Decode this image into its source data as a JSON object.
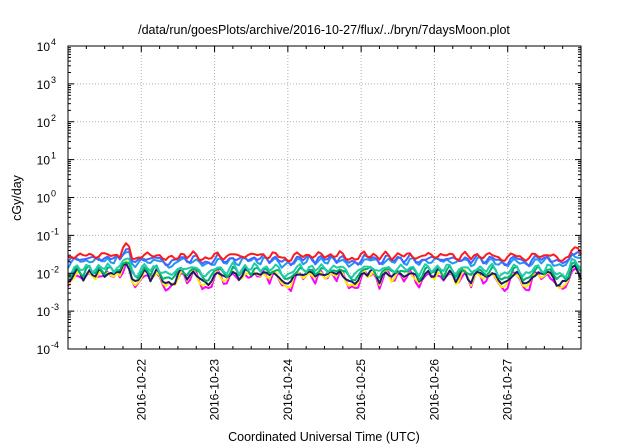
{
  "chart_data": {
    "type": "line",
    "title": "/data/run/goesPlots/archive/2016-10-27/flux/../bryn/7daysMoon.plot",
    "xlabel": "Coordinated Universal Time (UTC)",
    "ylabel": "cGy/day",
    "y_scale": "log",
    "ylim": [
      0.0001,
      10000
    ],
    "xlim": [
      "2016-10-21T00:00",
      "2016-10-28T00:00"
    ],
    "grid": true,
    "x_ticks": [
      "2016-10-22",
      "2016-10-23",
      "2016-10-24",
      "2016-10-25",
      "2016-10-26",
      "2016-10-27"
    ],
    "y_ticks": [
      {
        "value": 0.0001,
        "base": "10",
        "exp": "-4"
      },
      {
        "value": 0.001,
        "base": "10",
        "exp": "-3"
      },
      {
        "value": 0.01,
        "base": "10",
        "exp": "-2"
      },
      {
        "value": 0.1,
        "base": "10",
        "exp": "-1"
      },
      {
        "value": 1,
        "base": "10",
        "exp": "0"
      },
      {
        "value": 10,
        "base": "10",
        "exp": "1"
      },
      {
        "value": 100,
        "base": "10",
        "exp": "2"
      },
      {
        "value": 1000,
        "base": "10",
        "exp": "3"
      },
      {
        "value": 10000,
        "base": "10",
        "exp": "4"
      }
    ],
    "series": [
      {
        "color": "#ff00ff",
        "base": 0.0042,
        "spike": 2.6
      },
      {
        "color": "#ffee00",
        "base": 0.0048,
        "spike": 2.4
      },
      {
        "color": "#1a1a6e",
        "base": 0.0055,
        "spike": 2.2
      },
      {
        "color": "#00b36b",
        "base": 0.0075,
        "spike": 1.9
      },
      {
        "color": "#22ccaa",
        "base": 0.0095,
        "spike": 1.7
      },
      {
        "color": "#2299ee",
        "base": 0.0165,
        "spike": 1.5
      },
      {
        "color": "#4466ff",
        "base": 0.0195,
        "spike": 1.4
      },
      {
        "color": "#ff1a1a",
        "base": 0.0245,
        "spike": 1.35
      }
    ],
    "spike_days": [
      0.12,
      0.28,
      0.43,
      0.55,
      0.68,
      0.8,
      1.05,
      1.2,
      1.55,
      1.72,
      2.05,
      2.25,
      2.42,
      2.55,
      2.68,
      2.82,
      3.15,
      3.3,
      3.45,
      3.6,
      3.72,
      4.05,
      4.15,
      4.35,
      4.52,
      4.68,
      4.9,
      5.05,
      5.2,
      5.4,
      5.6,
      5.78,
      6.1,
      6.4,
      6.55,
      6.9
    ]
  }
}
